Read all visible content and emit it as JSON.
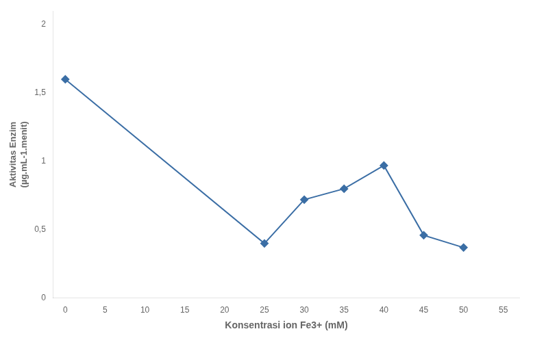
{
  "chart_data": {
    "type": "line",
    "x": [
      0,
      25,
      30,
      35,
      40,
      45,
      50
    ],
    "values": [
      1.6,
      0.4,
      0.72,
      0.8,
      0.97,
      0.46,
      0.37
    ],
    "color": "#3B6EA5",
    "marker": "diamond",
    "xlabel": "Konsentrasi ion Fe3+ (mM)",
    "ylabel": "Aktivitas Enzim\n(µg.mL-1.menit)",
    "xlim": [
      -1.5,
      57
    ],
    "ylim": [
      0,
      2.1
    ],
    "xticks": [
      0,
      5,
      10,
      15,
      20,
      25,
      30,
      35,
      40,
      45,
      50,
      55
    ],
    "yticks": [
      0,
      {
        "value": 0.5,
        "label": "0,5"
      },
      1,
      {
        "value": 1.5,
        "label": "1,5"
      },
      2
    ],
    "grid": false
  }
}
